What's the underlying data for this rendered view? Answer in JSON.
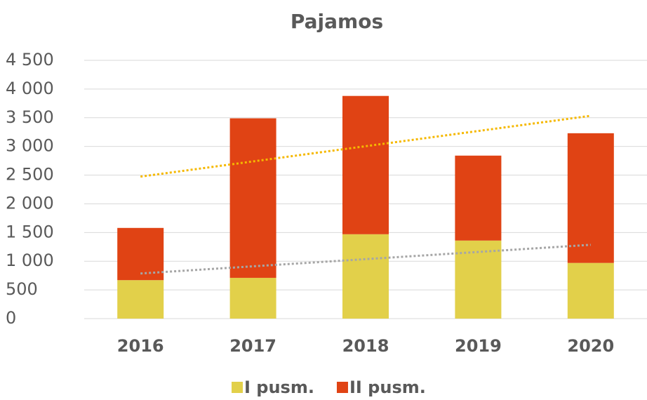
{
  "chart_data": {
    "type": "stacked_bar",
    "title": "Pajamos",
    "categories": [
      "2016",
      "2017",
      "2018",
      "2019",
      "2020"
    ],
    "series": [
      {
        "name": "I pusm.",
        "color": "#e2d04a",
        "values": [
          670,
          710,
          1470,
          1360,
          970
        ],
        "trend_color": "#a6a6a6"
      },
      {
        "name": "II pusm.",
        "color": "#e04314",
        "values": [
          910,
          2780,
          2410,
          1480,
          2260
        ],
        "trend_color": "#f5b800"
      }
    ],
    "ylim": [
      0,
      4500
    ],
    "yticks": [
      0,
      500,
      {
        "value": 1000,
        "label": "1 000"
      },
      {
        "value": 1500,
        "label": "1 500"
      },
      {
        "value": 2000,
        "label": "2 000"
      },
      {
        "value": 2500,
        "label": "2 500"
      },
      {
        "value": 3000,
        "label": "3 000"
      },
      {
        "value": 3500,
        "label": "3 500"
      },
      {
        "value": 4000,
        "label": "4 000"
      },
      {
        "value": 4500,
        "label": "4 500"
      }
    ],
    "grid": true,
    "legend": "bottom",
    "trendline": true
  }
}
